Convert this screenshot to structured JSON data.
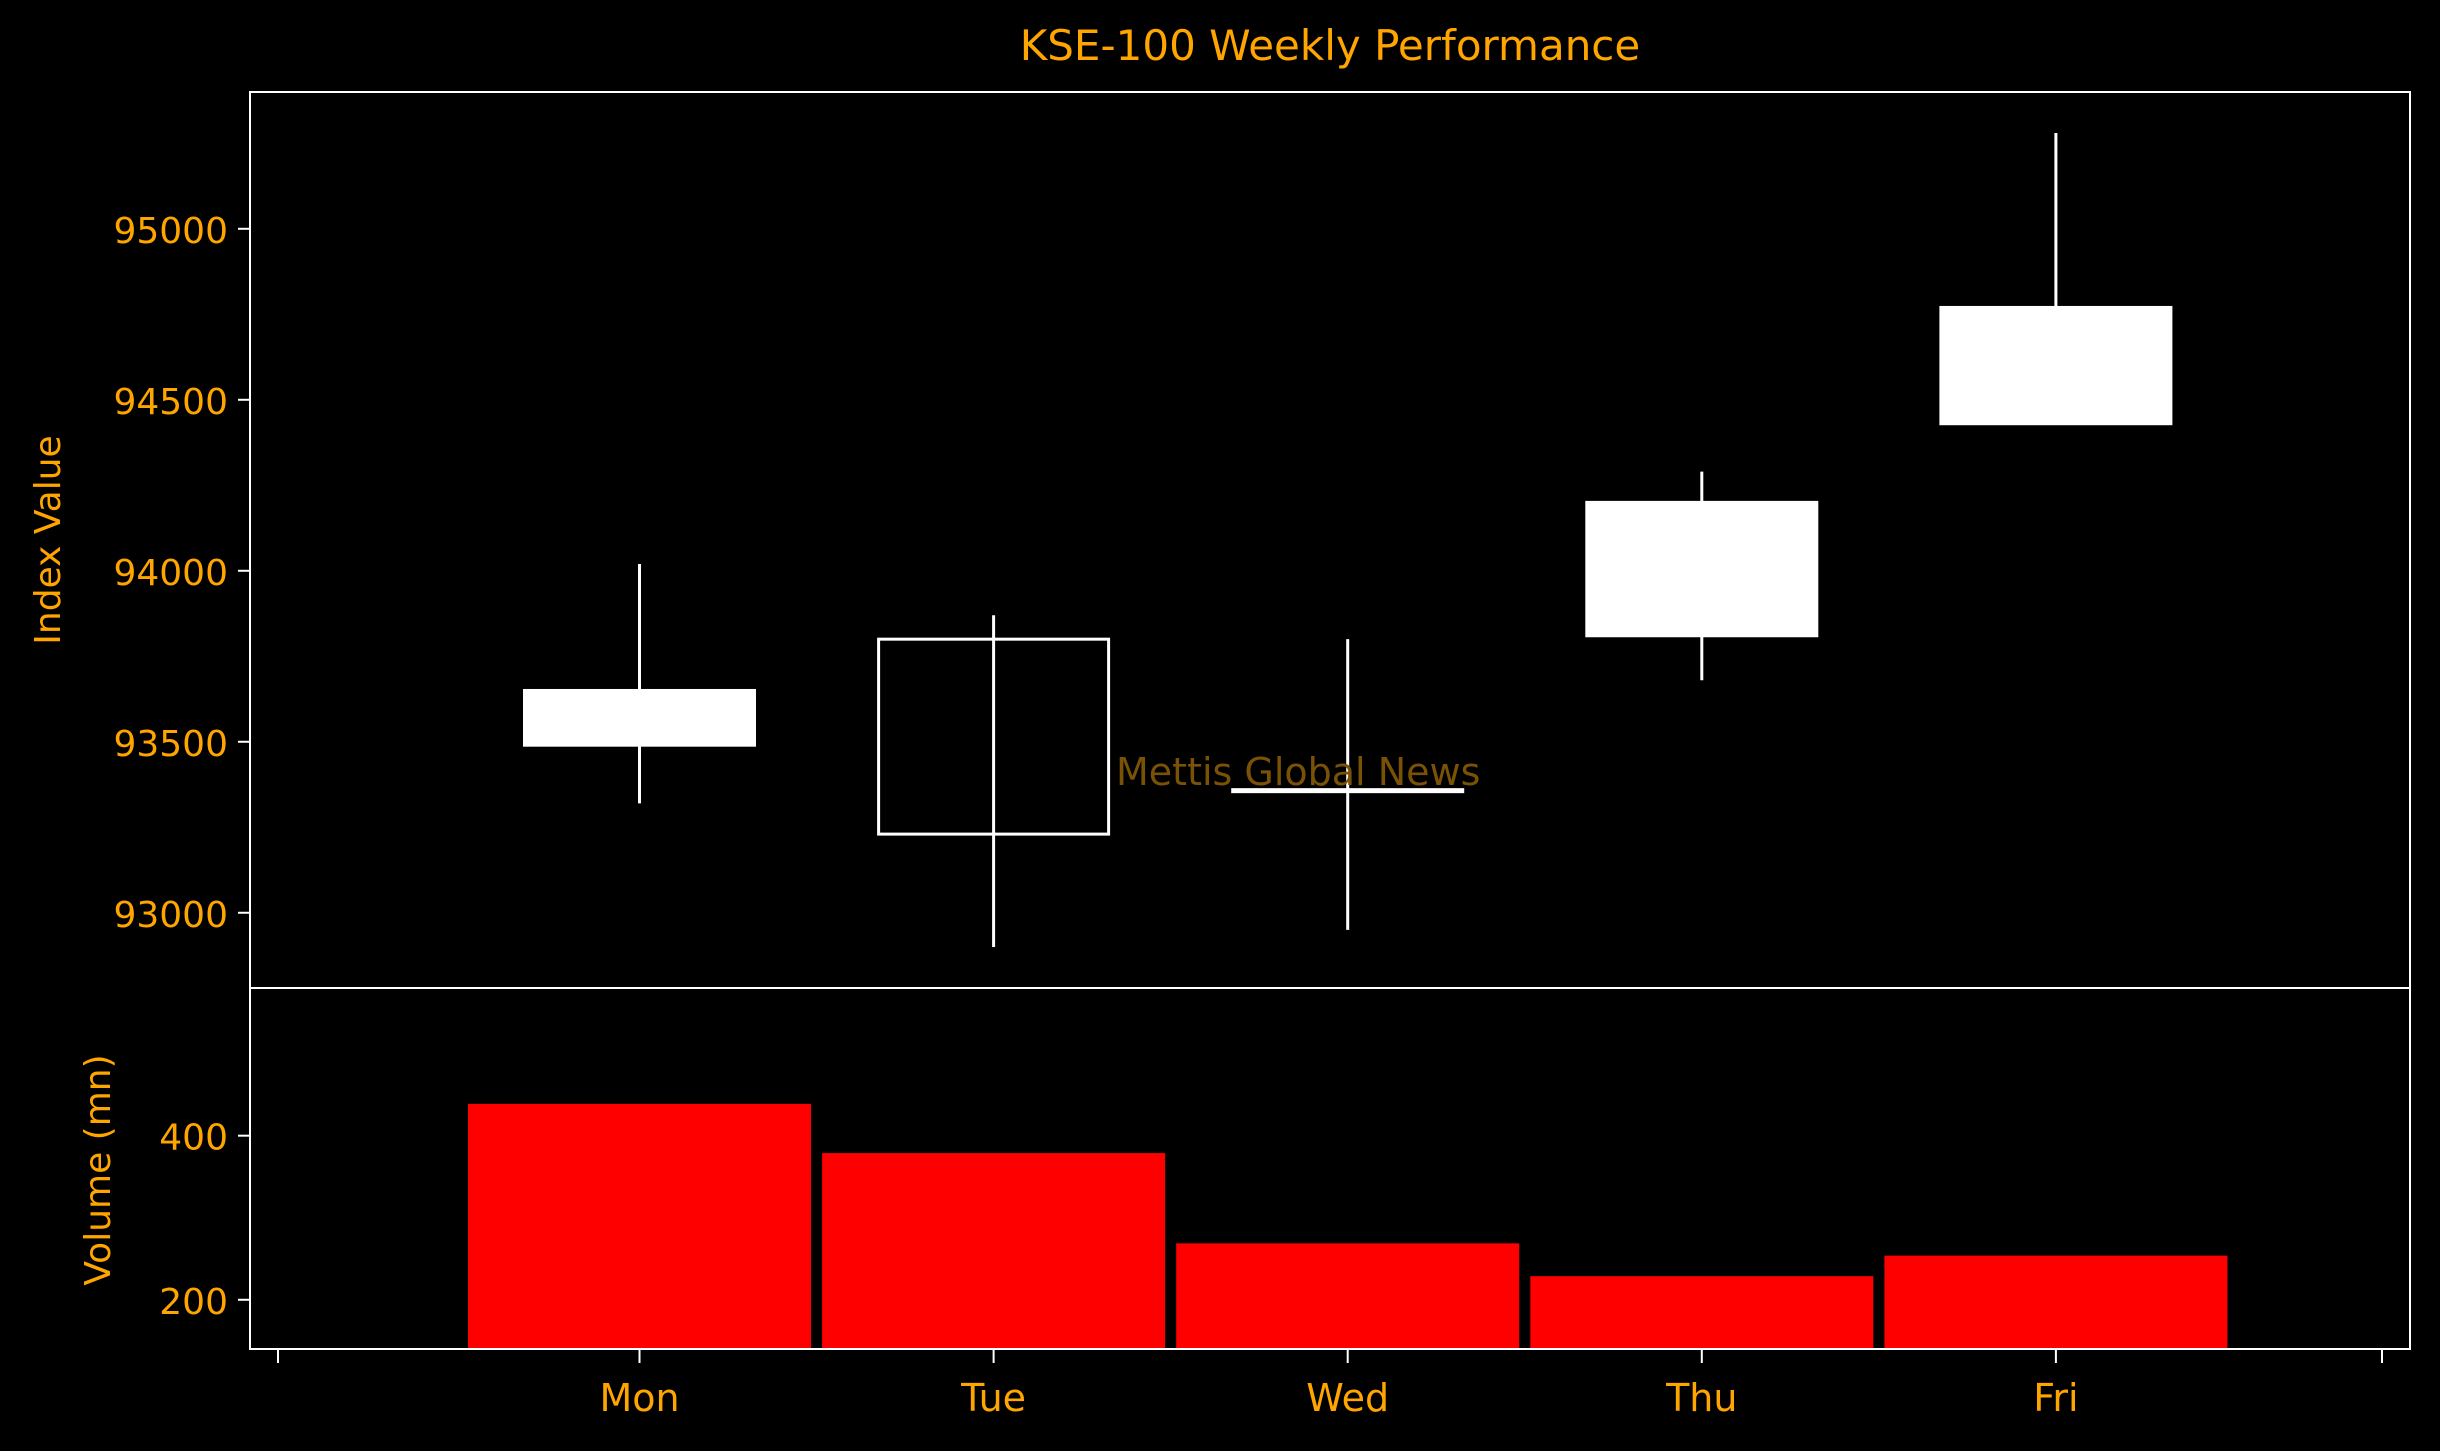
{
  "chart_data": {
    "type": "candlestick",
    "title": "KSE-100 Weekly Performance",
    "watermark": "Mettis Global News",
    "categories": [
      "Mon",
      "Tue",
      "Wed",
      "Thu",
      "Fri"
    ],
    "price": {
      "ylabel": "Index Value",
      "ylim": [
        92780,
        95400
      ],
      "ticks": [
        93000,
        93500,
        94000,
        94500,
        95000
      ],
      "candles": [
        {
          "day": "Mon",
          "open": 93490,
          "high": 94020,
          "low": 93320,
          "close": 93650,
          "filled": true
        },
        {
          "day": "Tue",
          "open": 93800,
          "high": 93870,
          "low": 92900,
          "close": 93230,
          "filled": false
        },
        {
          "day": "Wed",
          "open": 93360,
          "high": 93800,
          "low": 92950,
          "close": 93360,
          "filled": true
        },
        {
          "day": "Thu",
          "open": 93810,
          "high": 94290,
          "low": 93680,
          "close": 94200,
          "filled": true
        },
        {
          "day": "Fri",
          "open": 94430,
          "high": 95280,
          "low": 94430,
          "close": 94770,
          "filled": true
        }
      ]
    },
    "volume": {
      "ylabel": "Volume (mn)",
      "ylim": [
        140,
        580
      ],
      "ticks": [
        200,
        400
      ],
      "values": [
        440,
        380,
        270,
        230,
        255
      ]
    },
    "colors": {
      "background": "#000000",
      "text": "#FFA500",
      "axes": "#FFFFFF",
      "candle": "#FFFFFF",
      "volume": "#FF0000",
      "watermark": "#7A5206"
    }
  }
}
